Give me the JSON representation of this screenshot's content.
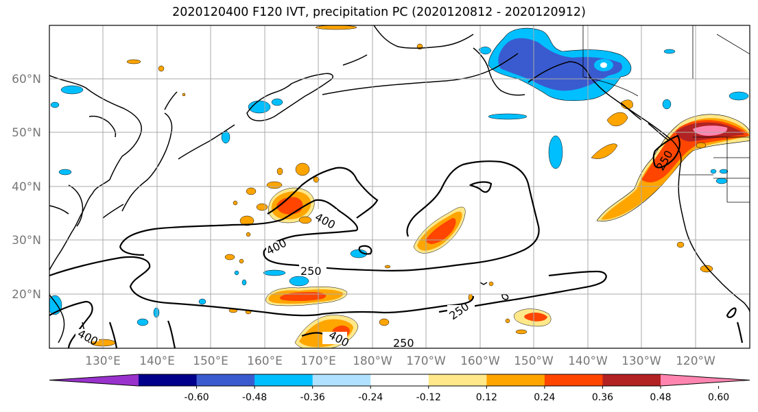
{
  "title": "2020120400 F120 IVT, precipitation PC (2020120812 - 2020120912)",
  "lat_labels": [
    "60°N",
    "50°N",
    "40°N",
    "30°N",
    "20°N"
  ],
  "lon_labels": [
    "130°E",
    "140°E",
    "150°E",
    "160°E",
    "170°E",
    "180°W",
    "170°W",
    "160°W",
    "150°W",
    "140°W",
    "130°W",
    "120°W"
  ],
  "contour_labels": [
    "400",
    "400",
    "250",
    "250",
    "400",
    "400",
    "250",
    "250"
  ],
  "colorbar": {
    "labels": [
      "-0.60",
      "-0.48",
      "-0.36",
      "-0.24",
      "-0.12",
      "0.12",
      "0.24",
      "0.36",
      "0.48",
      "0.60"
    ],
    "colors": [
      "#9932CC",
      "#00008B",
      "#3A5BCF",
      "#00BFFF",
      "#B0E2FF",
      "#FFFFFF",
      "#FFE88A",
      "#FFA500",
      "#FF4500",
      "#B22222",
      "#FF85B0"
    ]
  },
  "projection": "PlateCarree",
  "extent": {
    "lon": [
      120,
      250
    ],
    "lat": [
      10,
      70
    ]
  }
}
